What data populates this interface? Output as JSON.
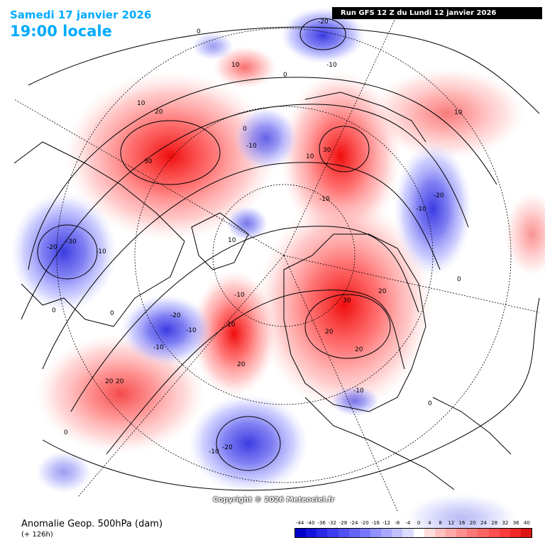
{
  "header": {
    "date": "Samedi 17 janvier 2026",
    "time": "19:00 locale",
    "run": "Run GFS 12 Z du Lundi 12 janvier 2026"
  },
  "copyright": "Copyright © 2026 Meteociel.fr",
  "footer": {
    "title": "Anomalie Geop. 500hPa (dam)",
    "subtitle": "(+ 126h)"
  },
  "legend": {
    "labels": [
      "-44",
      "-40",
      "-36",
      "-32",
      "-28",
      "-24",
      "-20",
      "-16",
      "-12",
      "-8",
      "-4",
      "0",
      "4",
      "8",
      "12",
      "16",
      "20",
      "24",
      "28",
      "32",
      "36",
      "40"
    ],
    "colors": [
      "#0000c8",
      "#1414dc",
      "#2828e6",
      "#3c3cf0",
      "#5050f5",
      "#6464fa",
      "#7878ff",
      "#9090ff",
      "#a8a8ff",
      "#c0c0ff",
      "#dcdcff",
      "#ffffff",
      "#ffdcdc",
      "#ffc0c0",
      "#ffa8a8",
      "#ff9090",
      "#ff7878",
      "#ff6464",
      "#ff5050",
      "#ff3c3c",
      "#f02828",
      "#dc1414"
    ]
  },
  "contour_labels": [
    "-20",
    "-10",
    "0",
    "10",
    "10",
    "20",
    "10",
    "30",
    "0",
    "-10",
    "0",
    "10",
    "30",
    "20",
    "-10",
    "10",
    "-20",
    "-10",
    "-20",
    "-30",
    "-10",
    "0",
    "0",
    "-10",
    "-10",
    "0",
    "-20",
    "-10",
    "10",
    "20",
    "20",
    "30",
    "20",
    "20",
    "20",
    "0",
    "-10",
    "-10",
    "-20",
    "0"
  ]
}
